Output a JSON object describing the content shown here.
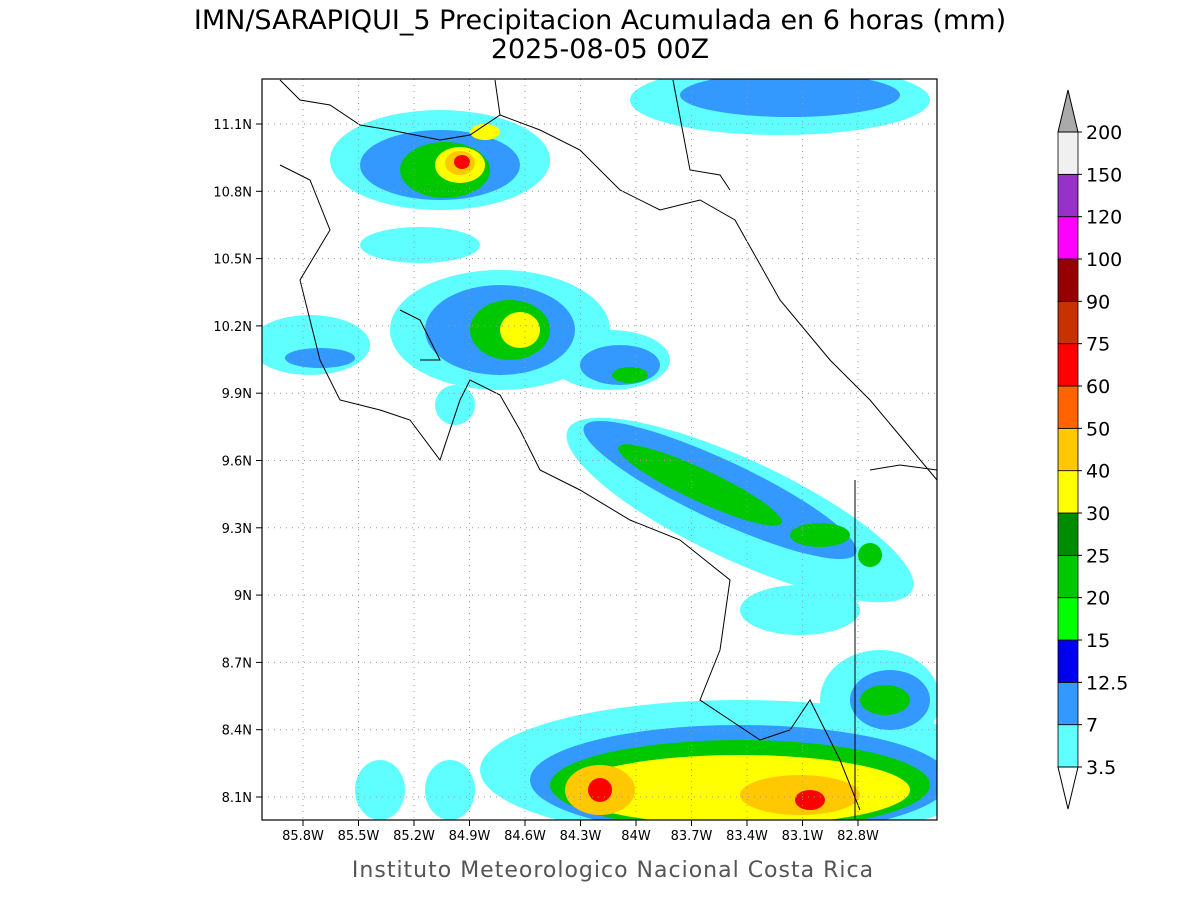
{
  "title": {
    "line1": "IMN/SARAPIQUI_5 Precipitacion Acumulada en 6 horas (mm)",
    "line2": "2025-08-05 00Z"
  },
  "map": {
    "lon_labels": [
      "85.8W",
      "85.5W",
      "85.2W",
      "84.9W",
      "84.6W",
      "84.3W",
      "84W",
      "83.7W",
      "83.4W",
      "83.1W",
      "82.8W"
    ],
    "lat_labels": [
      "11.1N",
      "10.8N",
      "10.5N",
      "10.2N",
      "9.9N",
      "9.6N",
      "9.3N",
      "9N",
      "8.7N",
      "8.4N",
      "8.1N"
    ]
  },
  "colorbar": {
    "levels": [
      3.5,
      7,
      12.5,
      15,
      20,
      25,
      30,
      40,
      50,
      60,
      75,
      90,
      100,
      120,
      150,
      200
    ],
    "colors": [
      "#5fffff",
      "#3399ff",
      "#0000ee",
      "#00ff00",
      "#00c800",
      "#008c00",
      "#ffff00",
      "#ffc800",
      "#ff6400",
      "#ff0000",
      "#c83200",
      "#960000",
      "#ff00ff",
      "#9632c8",
      "#f0f0f0"
    ],
    "over_color": "#aaaaaa",
    "under_color": "#ffffff"
  },
  "footer": "Instituto Meteorologico Nacional Costa Rica"
}
